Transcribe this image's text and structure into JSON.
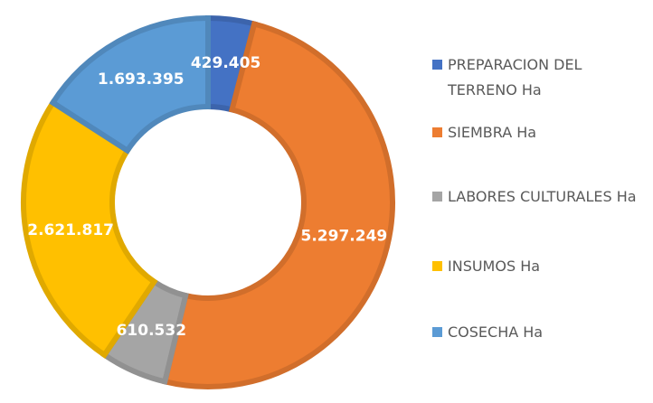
{
  "chart_data": {
    "type": "donut",
    "categories": [
      "PREPARACION DEL TERRENO Ha",
      "SIEMBRA Ha",
      "LABORES CULTURALES Ha",
      "INSUMOS Ha",
      "COSECHA Ha"
    ],
    "values": [
      429405,
      5297249,
      610532,
      2621817,
      1693395
    ],
    "value_labels": [
      "429.405",
      "5.297.249",
      "610.532",
      "2.621.817",
      "1.693.395"
    ],
    "colors": [
      "#4472c4",
      "#ed7d31",
      "#a5a5a5",
      "#ffc000",
      "#5b9bd5"
    ],
    "legend": "right"
  }
}
